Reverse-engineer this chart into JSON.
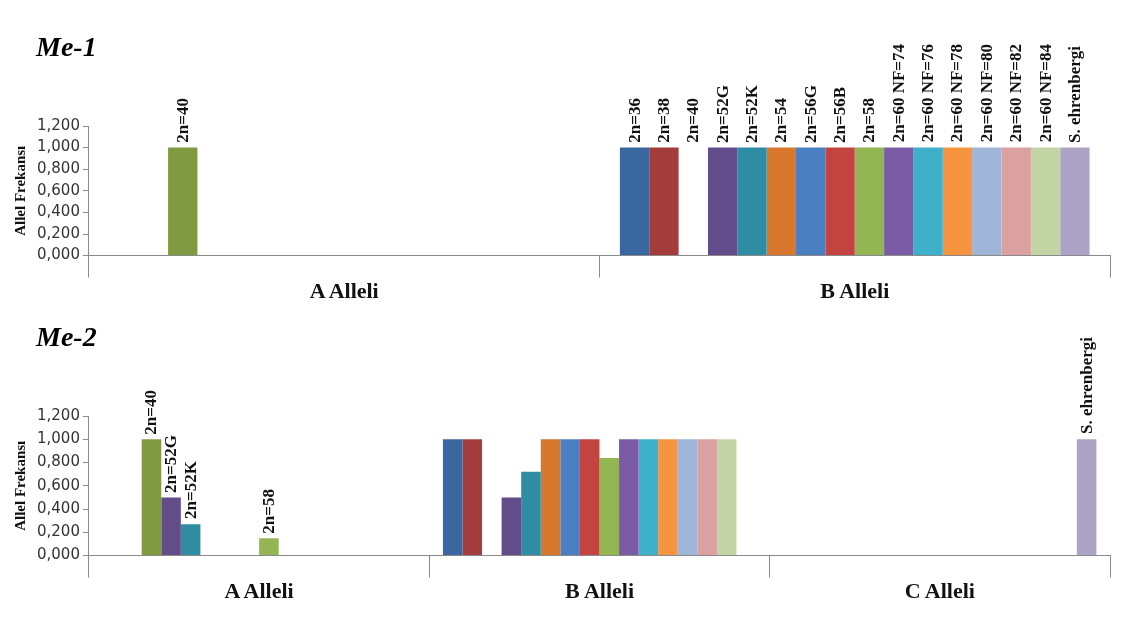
{
  "chart_data": [
    {
      "type": "bar",
      "title": "Me-1",
      "ylabel": "Allel Frekansı",
      "categories": [
        "A Alleli",
        "B Alleli"
      ],
      "legend": false,
      "ylim": [
        0,
        1.2
      ],
      "yticks": [
        {
          "value": 0,
          "label": "0,000"
        },
        {
          "value": 0.2,
          "label": "0,200"
        },
        {
          "value": 0.4,
          "label": "0,400"
        },
        {
          "value": 0.6,
          "label": "0,600"
        },
        {
          "value": 0.8,
          "label": "0,800"
        },
        {
          "value": 1,
          "label": "1,000"
        },
        {
          "value": 1.2,
          "label": "1,200"
        }
      ],
      "series": [
        {
          "name": "2n=36",
          "color": "#3b67a0",
          "values": [
            null,
            1
          ]
        },
        {
          "name": "2n=38",
          "color": "#a33c3a",
          "values": [
            null,
            1
          ]
        },
        {
          "name": "2n=40",
          "color": "#7f9a41",
          "values": [
            1,
            0
          ]
        },
        {
          "name": "2n=52G",
          "color": "#634c8a",
          "values": [
            null,
            1
          ]
        },
        {
          "name": "2n=52K",
          "color": "#2e8da3",
          "values": [
            null,
            1
          ]
        },
        {
          "name": "2n=54",
          "color": "#d7782e",
          "values": [
            null,
            1
          ]
        },
        {
          "name": "2n=56G",
          "color": "#4a7fc1",
          "values": [
            null,
            1
          ]
        },
        {
          "name": "2n=56B",
          "color": "#c2433f",
          "values": [
            null,
            1
          ]
        },
        {
          "name": "2n=58",
          "color": "#93b652",
          "values": [
            null,
            1
          ]
        },
        {
          "name": "2n=60 NF=74",
          "color": "#7b5aa6",
          "values": [
            null,
            1
          ]
        },
        {
          "name": "2n=60 NF=76",
          "color": "#3fb0c9",
          "values": [
            null,
            1
          ]
        },
        {
          "name": "2n=60 NF=78",
          "color": "#f79440",
          "values": [
            null,
            1
          ]
        },
        {
          "name": "2n=60 NF=80",
          "color": "#9fb6d8",
          "values": [
            null,
            1
          ]
        },
        {
          "name": "2n=60 NF=82",
          "color": "#dba0a0",
          "values": [
            null,
            1
          ]
        },
        {
          "name": "2n=60 NF=84",
          "color": "#c3d5a5",
          "values": [
            null,
            1
          ]
        },
        {
          "name": "S. ehrenbergi",
          "color": "#ada3c7",
          "values": [
            null,
            1
          ]
        }
      ],
      "annotations": [
        "2n=40"
      ]
    },
    {
      "type": "bar",
      "title": "Me-2",
      "ylabel": "Allel Frekansı",
      "categories": [
        "A Alleli",
        "B Alleli",
        "C Alleli"
      ],
      "legend": false,
      "ylim": [
        0,
        1.2
      ],
      "yticks": [
        {
          "value": 0,
          "label": "0,000"
        },
        {
          "value": 0.2,
          "label": "0,200"
        },
        {
          "value": 0.4,
          "label": "0,400"
        },
        {
          "value": 0.6,
          "label": "0,600"
        },
        {
          "value": 0.8,
          "label": "0,800"
        },
        {
          "value": 1,
          "label": "1,000"
        },
        {
          "value": 1.2,
          "label": "1,200"
        }
      ],
      "series": [
        {
          "color": "#3b67a0",
          "values": [
            null,
            1,
            null
          ]
        },
        {
          "color": "#a33c3a",
          "values": [
            null,
            1,
            null
          ]
        },
        {
          "name": "2n=40",
          "color": "#7f9a41",
          "values": [
            1,
            null,
            null
          ]
        },
        {
          "name": "2n=52G",
          "color": "#634c8a",
          "values": [
            0.5,
            0.5,
            null
          ]
        },
        {
          "name": "2n=52K",
          "color": "#2e8da3",
          "values": [
            0.27,
            0.72,
            null
          ]
        },
        {
          "color": "#d7782e",
          "values": [
            null,
            1,
            null
          ]
        },
        {
          "color": "#4a7fc1",
          "values": [
            null,
            1,
            null
          ]
        },
        {
          "color": "#c2433f",
          "values": [
            null,
            1,
            null
          ]
        },
        {
          "name": "2n=58",
          "color": "#93b652",
          "values": [
            0.15,
            0.84,
            null
          ]
        },
        {
          "color": "#7b5aa6",
          "values": [
            null,
            1,
            null
          ]
        },
        {
          "color": "#3fb0c9",
          "values": [
            null,
            1,
            null
          ]
        },
        {
          "color": "#f79440",
          "values": [
            null,
            1,
            null
          ]
        },
        {
          "color": "#9fb6d8",
          "values": [
            null,
            1,
            null
          ]
        },
        {
          "color": "#dba0a0",
          "values": [
            null,
            1,
            null
          ]
        },
        {
          "color": "#c3d5a5",
          "values": [
            null,
            1,
            null
          ]
        },
        {
          "name": "S. ehrenbergi",
          "color": "#ada3c7",
          "values": [
            null,
            null,
            1
          ]
        }
      ]
    }
  ]
}
